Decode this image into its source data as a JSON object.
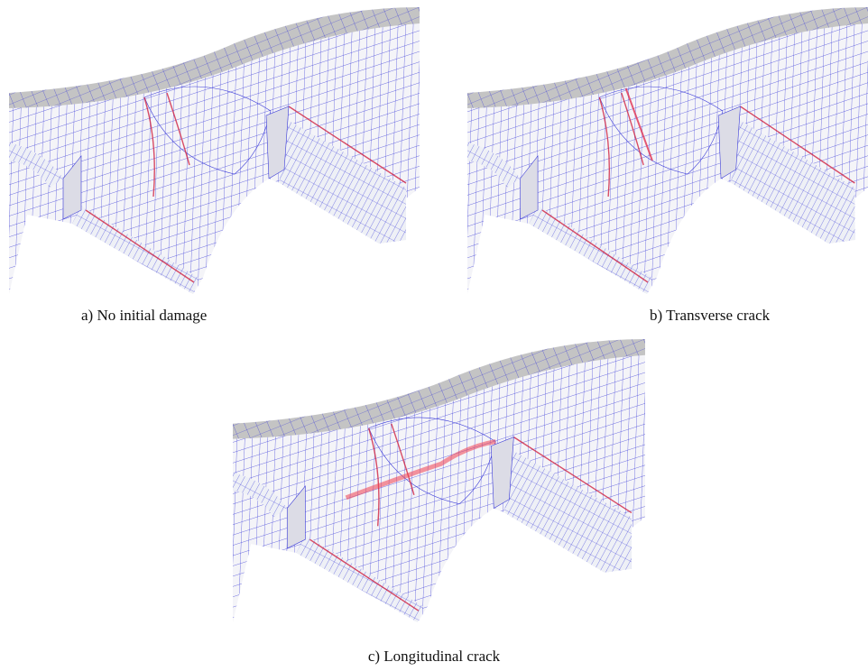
{
  "figure": {
    "panels": [
      {
        "caption": "a) No initial damage"
      },
      {
        "caption": "b) Transverse crack"
      },
      {
        "caption": "c) Longitudinal crack"
      }
    ]
  }
}
